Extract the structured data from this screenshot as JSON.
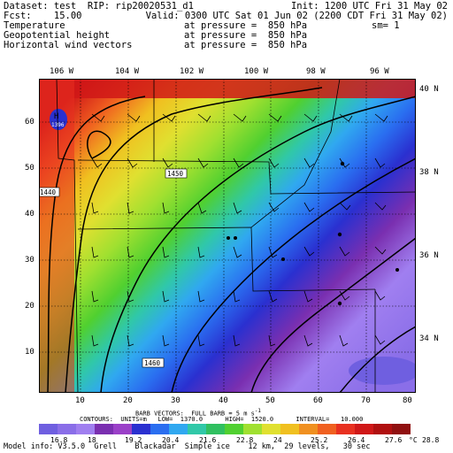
{
  "header": {
    "dataset_line": "Dataset: test  RIP: rip20020531_d1",
    "fcst_line": "Fcst:    15.00",
    "init_line": "Init: 1200 UTC Fri 31 May 02",
    "valid_line": "Valid: 0300 UTC Sat 01 Jun 02 (2200 CDT Fri 31 May 02)",
    "fields": [
      {
        "name": "Temperature",
        "level": "at pressure =  850 hPa"
      },
      {
        "name": "Geopotential height",
        "level": "at pressure =  850 hPa"
      },
      {
        "name": "Horizontal wind vectors",
        "level": "at pressure =  850 hPa"
      }
    ],
    "sm_label": "sm= 1"
  },
  "map": {
    "top_lon_labels": [
      "106 W",
      "104 W",
      "102 W",
      "100 W",
      "98 W",
      "96 W"
    ],
    "right_lat_labels": [
      "40 N",
      "38 N",
      "36 N",
      "34 N"
    ],
    "left_grid_labels": [
      "60",
      "50",
      "40",
      "30",
      "20",
      "10"
    ],
    "bottom_grid_labels": [
      "10",
      "20",
      "30",
      "40",
      "50",
      "60",
      "70",
      "80"
    ],
    "contour_labels": [
      "1440",
      "1450",
      "1460"
    ],
    "high_label": "H",
    "high_value": "1396",
    "barb_legend": "BARB VECTORS:  FULL BARB = 5 m s",
    "barb_legend_exp": "-1",
    "contour_info": "CONTOURS:  UNITS=m   LOW=  1370.0      HIGH=  1520.0      INTERVAL=   10.000"
  },
  "colorbar": {
    "labels": [
      "16.8",
      "18",
      "19.2",
      "20.4",
      "21.6",
      "22.8",
      "24",
      "25.2",
      "26.4",
      "27.6",
      "28.8"
    ],
    "unit": "°C",
    "colors": [
      "#6f5fe0",
      "#8a6ee8",
      "#a07ff0",
      "#7a2fb0",
      "#9a40c8",
      "#2a30d0",
      "#2a6ef0",
      "#30a8f0",
      "#30c8a8",
      "#30c060",
      "#50d030",
      "#a0e030",
      "#e0e030",
      "#f0c020",
      "#f09020",
      "#f06020",
      "#e83020",
      "#d01818",
      "#b01010",
      "#901010"
    ]
  },
  "footer": {
    "model_info": "Model info: V3.5.0  Grell    Blackadar  Simple ice    12 km,  29 levels,   30 sec"
  }
}
